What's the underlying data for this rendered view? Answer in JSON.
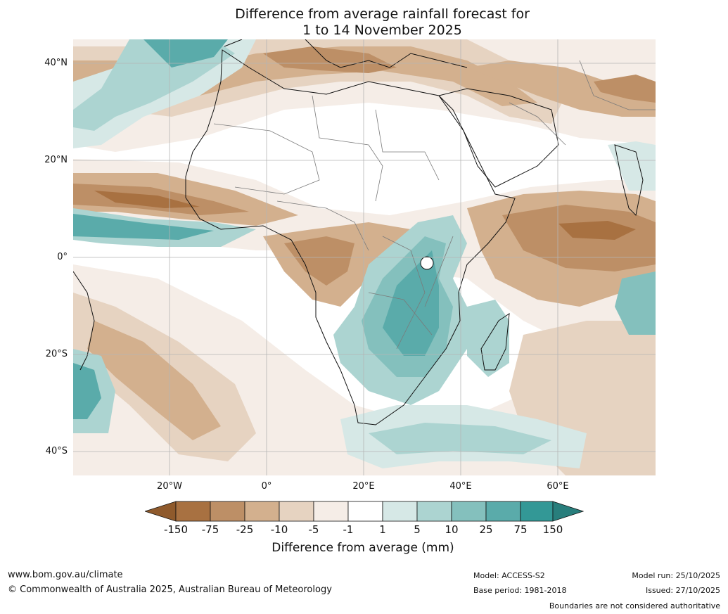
{
  "header": {
    "title_line1": "Difference from average rainfall forecast for",
    "title_line2": "1 to 14 November 2025"
  },
  "map": {
    "lat_labels": [
      "40°N",
      "20°N",
      "0°",
      "20°S",
      "40°S"
    ],
    "lon_labels": [
      "20°W",
      "0°",
      "20°E",
      "40°E",
      "60°E"
    ]
  },
  "legend": {
    "title": "Difference from average (mm)",
    "ticks": [
      "-150",
      "-75",
      "-25",
      "-10",
      "-5",
      "-1",
      "1",
      "5",
      "10",
      "25",
      "75",
      "150"
    ],
    "colors": [
      "#8f5a2c",
      "#a87141",
      "#bd8f66",
      "#d3b08e",
      "#e6d3c1",
      "#f5ede7",
      "#ffffff",
      "#d6e8e6",
      "#acd4d1",
      "#84c0bd",
      "#5aabaa",
      "#339896",
      "#287e7c"
    ]
  },
  "footer": {
    "website": "www.bom.gov.au/climate",
    "copyright": "© Commonwealth of Australia 2025, Australian Bureau of Meteorology",
    "model": "Model: ACCESS-S2",
    "base_period": "Base period: 1981-2018",
    "model_run": "Model run: 25/10/2025",
    "issued": "Issued: 27/10/2025",
    "disclaimer": "Boundaries are not considered authoritative"
  }
}
